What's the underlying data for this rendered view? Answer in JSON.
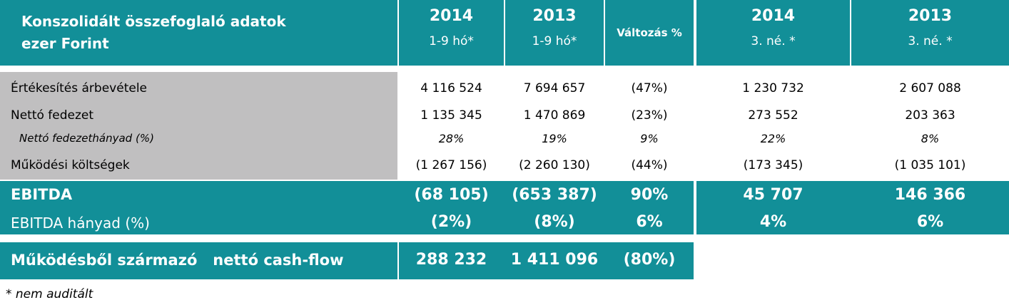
{
  "header": {
    "title_line1": "Konszolidált összefoglaló adatok",
    "title_line2": "ezer Forint",
    "columns": [
      {
        "year": "2014",
        "period": "1-9 hó*"
      },
      {
        "year": "2013",
        "period": "1-9 hó*"
      },
      {
        "label": "Változás %"
      },
      {
        "year": "2014",
        "period": "3. né.  *"
      },
      {
        "year": "2013",
        "period": "3. né.  *"
      }
    ]
  },
  "rows": [
    {
      "label": "Értékesítés árbevétele",
      "values": [
        "4 116 524",
        "7 694 657",
        "(47%)",
        "1 230 732",
        "2 607 088"
      ]
    },
    {
      "label": "Nettó fedezet",
      "values": [
        "1 135 345",
        "1 470 869",
        "(23%)",
        "273 552",
        "203 363"
      ]
    },
    {
      "label": "Nettó fedezethányad (%)",
      "values": [
        "28%",
        "19%",
        "9%",
        "22%",
        "8%"
      ]
    },
    {
      "label": "Működési költségek",
      "values": [
        "(1 267 156)",
        "(2 260 130)",
        "(44%)",
        "(173 345)",
        "(1 035 101)"
      ]
    }
  ],
  "ebitda": {
    "label": "EBITDA",
    "values": [
      "(68 105)",
      "(653 387)",
      "90%",
      "45 707",
      "146 366"
    ]
  },
  "ebitda_ratio": {
    "label": "EBITDA hányad (%)",
    "values": [
      "(2%)",
      "(8%)",
      "6%",
      "4%",
      "6%"
    ]
  },
  "cashflow": {
    "label": "Működésből származó   nettó cash-flow",
    "values": [
      "288 232",
      "1 411 096",
      "(80%)"
    ]
  },
  "footnote": "* nem auditált"
}
